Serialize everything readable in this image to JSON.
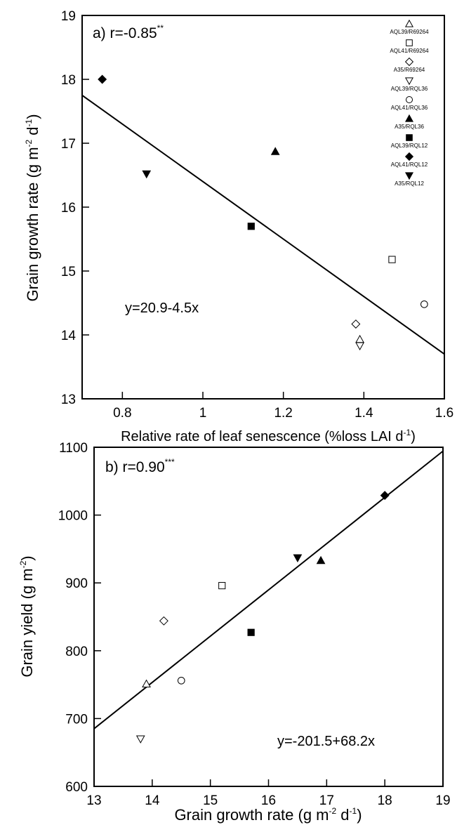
{
  "legend": [
    {
      "label": "AQL39/R69264",
      "marker": "triangle-up",
      "filled": false
    },
    {
      "label": "AQL41/R69264",
      "marker": "square",
      "filled": false
    },
    {
      "label": "A35/R69264",
      "marker": "diamond",
      "filled": false
    },
    {
      "label": "AQL39/RQL36",
      "marker": "triangle-down",
      "filled": false
    },
    {
      "label": "AQL41/RQL36",
      "marker": "circle",
      "filled": false
    },
    {
      "label": "A35/RQL36",
      "marker": "triangle-up",
      "filled": true
    },
    {
      "label": "AQL39/RQL12",
      "marker": "square",
      "filled": true
    },
    {
      "label": "AQL41/RQL12",
      "marker": "diamond",
      "filled": true
    },
    {
      "label": "A35/RQL12",
      "marker": "triangle-down",
      "filled": true
    }
  ],
  "chart_data": [
    {
      "type": "scatter",
      "panel": "a)",
      "r_text": "r=-0.85",
      "significance": "**",
      "equation": "y=20.9-4.5x",
      "xlabel": {
        "main": "Relative rate of leaf senescence (%loss LAI d",
        "sup": "-1",
        "close": ")"
      },
      "ylabel": {
        "main": "Grain growth rate (g m",
        "sup1": "-2",
        "mid": " d",
        "sup2": "-1",
        "close": ")"
      },
      "xlim": [
        0.7,
        1.6
      ],
      "ylim": [
        13,
        19
      ],
      "xticks": [
        0.8,
        1,
        1.2,
        1.4,
        1.6
      ],
      "xtick_labels": [
        "0.8",
        "1",
        "1.2",
        "1.4",
        "1.6"
      ],
      "yticks": [
        13,
        14,
        15,
        16,
        17,
        18,
        19
      ],
      "ytick_labels": [
        "13",
        "14",
        "15",
        "16",
        "17",
        "18",
        "19"
      ],
      "regression": {
        "intercept": 20.9,
        "slope": -4.5,
        "x_range": [
          0.7,
          1.6
        ]
      },
      "points": [
        {
          "series": "AQL41/RQL12",
          "x": 0.75,
          "y": 18.0
        },
        {
          "series": "A35/RQL12",
          "x": 0.86,
          "y": 16.52
        },
        {
          "series": "AQL39/RQL12",
          "x": 1.12,
          "y": 15.7
        },
        {
          "series": "A35/RQL36",
          "x": 1.18,
          "y": 16.87
        },
        {
          "series": "A35/R69264",
          "x": 1.38,
          "y": 14.17
        },
        {
          "series": "AQL39/R69264",
          "x": 1.39,
          "y": 13.93
        },
        {
          "series": "AQL39/RQL36",
          "x": 1.39,
          "y": 13.83
        },
        {
          "series": "AQL41/R69264",
          "x": 1.47,
          "y": 15.18
        },
        {
          "series": "AQL41/RQL36",
          "x": 1.55,
          "y": 14.48
        }
      ]
    },
    {
      "type": "scatter",
      "panel": "b)",
      "r_text": "r=0.90",
      "significance": "***",
      "equation": "y=-201.5+68.2x",
      "xlabel": {
        "main": "Grain growth rate (g m",
        "sup1": "-2",
        "mid": " d",
        "sup2": "-1",
        "close": ")"
      },
      "ylabel": {
        "main": "Grain yield (g m",
        "sup": "-2",
        "close": ")"
      },
      "xlim": [
        13,
        19
      ],
      "ylim": [
        600,
        1100
      ],
      "xticks": [
        13,
        14,
        15,
        16,
        17,
        18,
        19
      ],
      "xtick_labels": [
        "13",
        "14",
        "15",
        "16",
        "17",
        "18",
        "19"
      ],
      "yticks": [
        600,
        700,
        800,
        900,
        1000,
        1100
      ],
      "ytick_labels": [
        "600",
        "700",
        "800",
        "900",
        "1000",
        "1100"
      ],
      "regression": {
        "intercept": -201.5,
        "slope": 68.2,
        "x_range": [
          13,
          19
        ]
      },
      "points": [
        {
          "series": "AQL39/RQL36",
          "x": 13.8,
          "y": 670
        },
        {
          "series": "AQL39/R69264",
          "x": 13.9,
          "y": 751
        },
        {
          "series": "A35/R69264",
          "x": 14.2,
          "y": 844
        },
        {
          "series": "AQL41/RQL36",
          "x": 14.5,
          "y": 756
        },
        {
          "series": "AQL41/R69264",
          "x": 15.2,
          "y": 896
        },
        {
          "series": "AQL39/RQL12",
          "x": 15.7,
          "y": 827
        },
        {
          "series": "A35/RQL12",
          "x": 16.5,
          "y": 937
        },
        {
          "series": "A35/RQL36",
          "x": 16.9,
          "y": 933
        },
        {
          "series": "AQL41/RQL12",
          "x": 18.0,
          "y": 1029
        }
      ]
    }
  ]
}
